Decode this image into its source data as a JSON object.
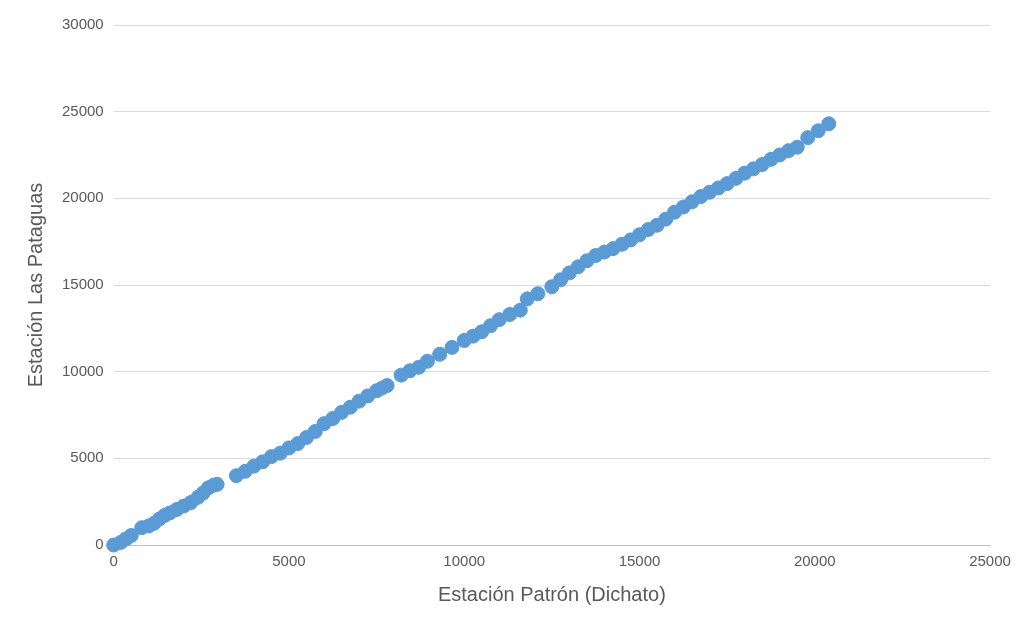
{
  "chart_data": {
    "type": "scatter",
    "xlabel": "Estación Patrón (Dichato)",
    "ylabel": "Estación Las Pataguas",
    "xlim": [
      0,
      25000
    ],
    "ylim": [
      0,
      30000
    ],
    "xticks": [
      0,
      5000,
      10000,
      15000,
      20000,
      25000
    ],
    "yticks": [
      0,
      5000,
      10000,
      15000,
      20000,
      25000,
      30000
    ],
    "grid": "y",
    "marker": "circle",
    "legend": false,
    "series": [
      {
        "color": "#5b9bd5",
        "x": [
          0,
          200,
          350,
          500,
          800,
          1000,
          1150,
          1300,
          1450,
          1600,
          1800,
          2000,
          2200,
          2400,
          2550,
          2700,
          2850,
          2950,
          3500,
          3750,
          4000,
          4250,
          4500,
          4750,
          5000,
          5250,
          5500,
          5750,
          6000,
          6250,
          6500,
          6750,
          7000,
          7250,
          7500,
          7650,
          7800,
          8200,
          8450,
          8700,
          8950,
          9300,
          9650,
          10000,
          10250,
          10500,
          10750,
          11000,
          11300,
          11600,
          11800,
          12100,
          12500,
          12750,
          13000,
          13250,
          13500,
          13750,
          14000,
          14250,
          14500,
          14750,
          15000,
          15250,
          15500,
          15750,
          16000,
          16250,
          16500,
          16750,
          17000,
          17250,
          17500,
          17750,
          18000,
          18250,
          18500,
          18750,
          19000,
          19250,
          19500,
          19800,
          20100,
          20400
        ],
        "values": [
          0,
          150,
          350,
          550,
          1000,
          1100,
          1250,
          1500,
          1700,
          1850,
          2050,
          2250,
          2450,
          2750,
          3000,
          3300,
          3450,
          3500,
          4000,
          4250,
          4550,
          4800,
          5100,
          5300,
          5600,
          5850,
          6200,
          6550,
          7000,
          7300,
          7650,
          7950,
          8300,
          8600,
          8900,
          9050,
          9200,
          9800,
          10050,
          10250,
          10600,
          11000,
          11400,
          11800,
          12050,
          12300,
          12650,
          13000,
          13300,
          13550,
          14200,
          14500,
          14900,
          15300,
          15700,
          16050,
          16400,
          16700,
          16900,
          17100,
          17350,
          17600,
          17900,
          18200,
          18450,
          18800,
          19200,
          19500,
          19800,
          20100,
          20350,
          20600,
          20850,
          21150,
          21450,
          21700,
          21950,
          22250,
          22500,
          22750,
          22950,
          23500,
          23900,
          24300
        ]
      }
    ]
  }
}
